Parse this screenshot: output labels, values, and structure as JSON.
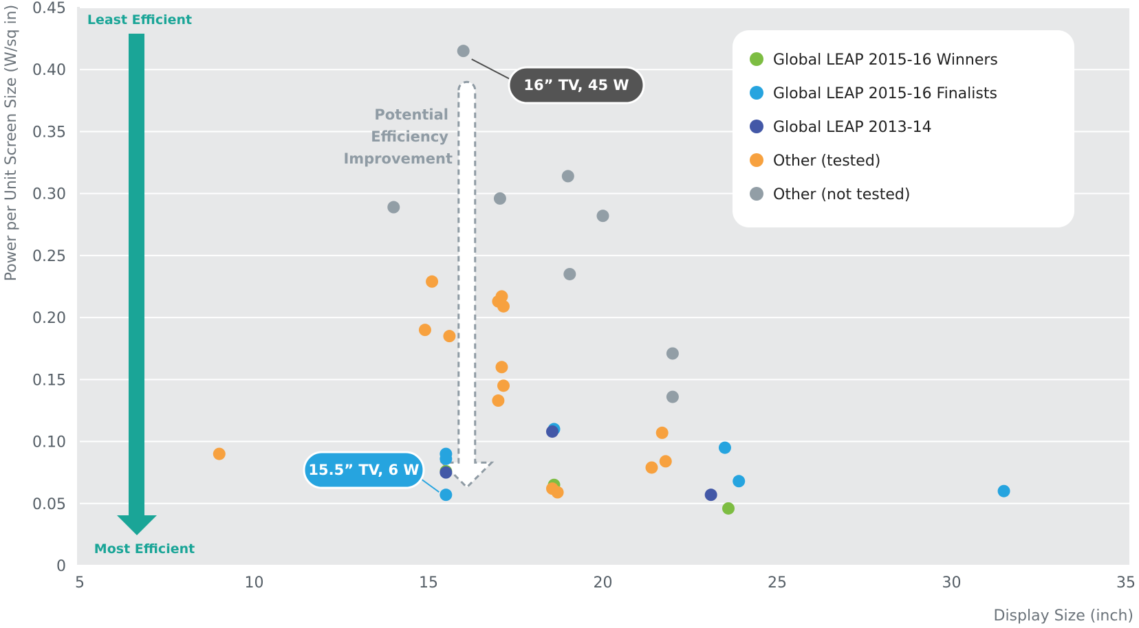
{
  "chart_data": {
    "type": "scatter",
    "xlabel": "Display Size (inch)",
    "ylabel": "Power per Unit Screen Size (W/sq in)",
    "xlim": [
      5,
      35
    ],
    "ylim": [
      0,
      0.45
    ],
    "x_ticks": [
      5,
      10,
      15,
      20,
      25,
      30,
      35
    ],
    "y_ticks": [
      0,
      0.05,
      0.1,
      0.15,
      0.2,
      0.25,
      0.3,
      0.35,
      0.4,
      0.45
    ],
    "y_tick_labels": [
      "0",
      "0.05",
      "0.10",
      "0.15",
      "0.20",
      "0.25",
      "0.30",
      "0.35",
      "0.40",
      "0.45"
    ],
    "grid": "horizontal",
    "legend_position": "top-right",
    "series": [
      {
        "name": "Global LEAP 2015-16 Winners",
        "color": "#7dbd42",
        "points": [
          [
            15.5,
            0.076
          ],
          [
            18.6,
            0.065
          ],
          [
            23.6,
            0.046
          ]
        ]
      },
      {
        "name": "Global LEAP 2015-16 Finalists",
        "color": "#26a4df",
        "points": [
          [
            15.5,
            0.09
          ],
          [
            15.5,
            0.086
          ],
          [
            15.5,
            0.057
          ],
          [
            18.6,
            0.11
          ],
          [
            23.5,
            0.095
          ],
          [
            23.9,
            0.068
          ],
          [
            31.5,
            0.06
          ]
        ]
      },
      {
        "name": "Global LEAP 2013-14",
        "color": "#4358a7",
        "points": [
          [
            15.5,
            0.075
          ],
          [
            18.55,
            0.108
          ],
          [
            23.1,
            0.057
          ]
        ]
      },
      {
        "name": "Other (tested)",
        "color": "#f7a13f",
        "points": [
          [
            9.0,
            0.09
          ],
          [
            14.9,
            0.19
          ],
          [
            15.1,
            0.229
          ],
          [
            15.6,
            0.185
          ],
          [
            17.0,
            0.133
          ],
          [
            17.1,
            0.16
          ],
          [
            17.15,
            0.145
          ],
          [
            17.0,
            0.213
          ],
          [
            17.1,
            0.217
          ],
          [
            17.15,
            0.209
          ],
          [
            18.55,
            0.062
          ],
          [
            18.7,
            0.059
          ],
          [
            21.4,
            0.079
          ],
          [
            21.7,
            0.107
          ],
          [
            21.8,
            0.084
          ]
        ]
      },
      {
        "name": "Other (not tested)",
        "color": "#929ea6",
        "points": [
          [
            14.0,
            0.289
          ],
          [
            16.0,
            0.415
          ],
          [
            17.05,
            0.296
          ],
          [
            19.0,
            0.314
          ],
          [
            19.05,
            0.235
          ],
          [
            20.0,
            0.282
          ],
          [
            22.0,
            0.171
          ],
          [
            22.0,
            0.136
          ]
        ]
      }
    ],
    "annotations": {
      "least_efficient": "Least Efficient",
      "most_efficient": "Most Efficient",
      "improvement_lines": [
        "Potential",
        "Efficiency",
        "Improvement"
      ],
      "callout_high": {
        "text": "16” TV, 45 W",
        "point": [
          16.0,
          0.415
        ],
        "color": "#545454"
      },
      "callout_low": {
        "text": "15.5” TV, 6 W",
        "point": [
          15.5,
          0.057
        ],
        "color": "#26a4df"
      },
      "improvement_arrow": {
        "from": [
          16.1,
          0.39
        ],
        "to": [
          16.1,
          0.083
        ]
      }
    }
  }
}
